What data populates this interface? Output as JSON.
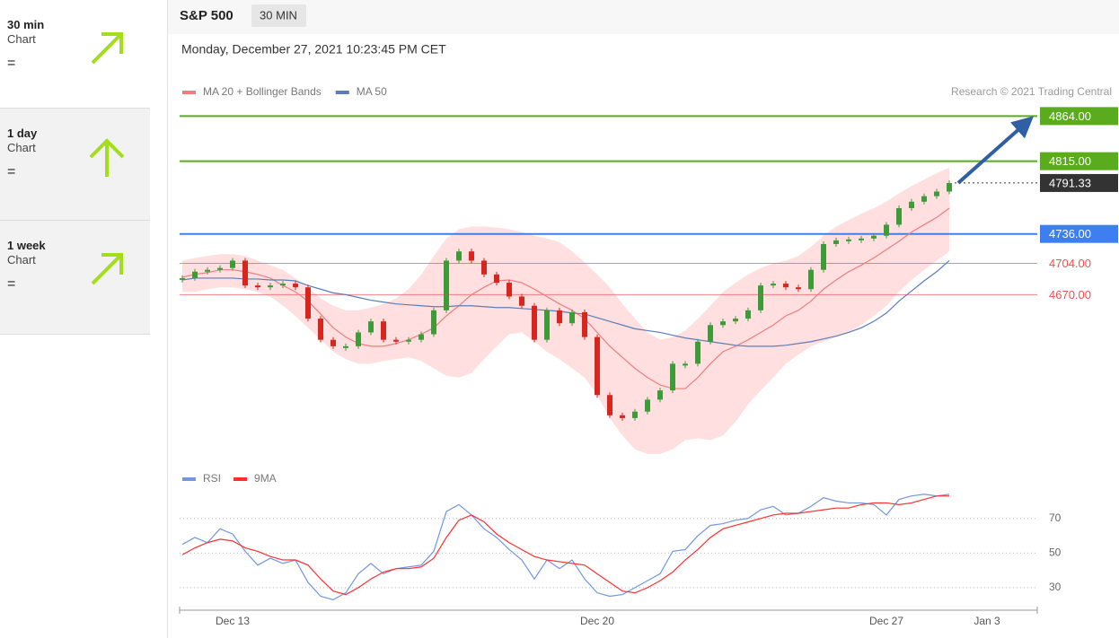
{
  "sidebar": [
    {
      "period": "30 min",
      "kind": "Chart",
      "status": "="
    },
    {
      "period": "1 day",
      "kind": "Chart",
      "status": "="
    },
    {
      "period": "1 week",
      "kind": "Chart",
      "status": "="
    }
  ],
  "chart_data": {
    "type": "candlestick",
    "title": "S&P 500",
    "subtitle": "30 MIN",
    "timestamp": "Monday, December 27, 2021 10:23:45 PM CET",
    "attribution": "Research © 2021 Trading Central",
    "categories": [
      null,
      null,
      null,
      null,
      "Dec 13",
      null,
      null,
      null,
      null,
      null,
      null,
      null,
      null,
      null,
      null,
      null,
      null,
      null,
      null,
      null,
      null,
      null,
      null,
      null,
      null,
      null,
      null,
      null,
      null,
      null,
      null,
      null,
      null,
      "Dec 20",
      null,
      null,
      null,
      null,
      null,
      null,
      null,
      null,
      null,
      null,
      null,
      null,
      null,
      null,
      null,
      null,
      null,
      null,
      null,
      null,
      null,
      null,
      "Dec 27",
      null,
      null,
      null,
      null,
      null,
      null,
      null,
      "Jan 3",
      null,
      null,
      null,
      null
    ],
    "close": [
      4688,
      4695,
      4697,
      4699,
      4707,
      4680,
      4678,
      4680,
      4682,
      4678,
      4644,
      4621,
      4614,
      4614,
      4629,
      4641,
      4621,
      4619,
      4621,
      4627,
      4653,
      4707,
      4717,
      4707,
      4692,
      4683,
      4668,
      4658,
      4621,
      4653,
      4639,
      4651,
      4624,
      4561,
      4539,
      4536,
      4543,
      4556,
      4566,
      4595,
      4595,
      4619,
      4637,
      4641,
      4644,
      4653,
      4680,
      4682,
      4678,
      4676,
      4697,
      4725,
      4729,
      4730,
      4731,
      4734,
      4746,
      4764,
      4771,
      4777,
      4782,
      4791.33,
      null,
      null,
      null,
      null,
      null,
      null,
      null
    ],
    "up_color": "#3f9a3a",
    "down_color": "#d8261e",
    "ylim": [
      4493,
      4878
    ],
    "series": [
      {
        "name": "MA 20 + Bollinger Bands",
        "color": "#f07d7d",
        "band_color": "#ffd9d9",
        "values": [
          4689,
          4692,
          4694,
          4697,
          4697,
          4695,
          4692,
          4688,
          4680,
          4673,
          4663,
          4649,
          4634,
          4624,
          4617,
          4614,
          4614,
          4617,
          4621,
          4627,
          4634,
          4647,
          4658,
          4670,
          4678,
          4685,
          4686,
          4683,
          4676,
          4668,
          4660,
          4653,
          4644,
          4629,
          4614,
          4602,
          4590,
          4580,
          4572,
          4568,
          4568,
          4580,
          4595,
          4608,
          4614,
          4621,
          4629,
          4637,
          4647,
          4653,
          4663,
          4676,
          4686,
          4695,
          4702,
          4710,
          4719,
          4728,
          4738,
          4746,
          4754,
          4764,
          null,
          null,
          null,
          null,
          null,
          null,
          null
        ],
        "upper": [
          4707,
          4710,
          4712,
          4714,
          4714,
          4712,
          4707,
          4702,
          4697,
          4688,
          4678,
          4666,
          4658,
          4653,
          4653,
          4656,
          4660,
          4666,
          4676,
          4692,
          4712,
          4731,
          4741,
          4744,
          4744,
          4743,
          4741,
          4738,
          4734,
          4731,
          4727,
          4717,
          4705,
          4692,
          4678,
          4660,
          4644,
          4629,
          4621,
          4624,
          4631,
          4644,
          4658,
          4673,
          4683,
          4692,
          4699,
          4704,
          4707,
          4712,
          4722,
          4734,
          4744,
          4751,
          4758,
          4764,
          4771,
          4780,
          4788,
          4795,
          4802,
          4808,
          null,
          null,
          null,
          null,
          null,
          null,
          null
        ],
        "lower": [
          4673,
          4673,
          4676,
          4678,
          4678,
          4676,
          4673,
          4668,
          4658,
          4647,
          4634,
          4621,
          4608,
          4600,
          4595,
          4595,
          4598,
          4600,
          4602,
          4598,
          4590,
          4582,
          4580,
          4585,
          4600,
          4614,
          4627,
          4629,
          4619,
          4608,
          4600,
          4590,
          4580,
          4561,
          4536,
          4517,
          4502,
          4497,
          4497,
          4502,
          4512,
          4514,
          4512,
          4517,
          4532,
          4551,
          4566,
          4580,
          4595,
          4605,
          4614,
          4619,
          4624,
          4629,
          4637,
          4647,
          4658,
          4673,
          4686,
          4697,
          4707,
          4717,
          null,
          null,
          null,
          null,
          null,
          null,
          null
        ]
      },
      {
        "name": "MA 50",
        "color": "#5a7db8",
        "values": [
          4686,
          4688,
          4688,
          4688,
          4688,
          4687,
          4687,
          4686,
          4686,
          4685,
          4680,
          4676,
          4672,
          4670,
          4667,
          4664,
          4662,
          4660,
          4659,
          4658,
          4657,
          4657,
          4658,
          4658,
          4657,
          4656,
          4656,
          4655,
          4654,
          4653,
          4652,
          4650,
          4649,
          4645,
          4641,
          4637,
          4633,
          4631,
          4629,
          4626,
          4623,
          4621,
          4619,
          4617,
          4615,
          4614,
          4614,
          4614,
          4615,
          4617,
          4619,
          4622,
          4625,
          4629,
          4634,
          4641,
          4650,
          4663,
          4674,
          4685,
          4695,
          4707,
          null,
          null,
          null,
          null,
          null,
          null,
          null
        ]
      }
    ],
    "levels": [
      {
        "value": 4864,
        "label": "4864.00",
        "color": "#5aab1e",
        "boxed": true
      },
      {
        "value": 4815,
        "label": "4815.00",
        "color": "#5aab1e",
        "boxed": true
      },
      {
        "value": 4791.33,
        "label": "4791.33",
        "color": "#333333",
        "boxed": true,
        "dotted": true
      },
      {
        "value": 4736,
        "label": "4736.00",
        "color": "#3d7ff0",
        "boxed": true
      },
      {
        "value": 4704,
        "label": "4704.00",
        "color": "#f05050",
        "boxed": false
      },
      {
        "value": 4670,
        "label": "4670.00",
        "color": "#f05050",
        "boxed": false
      }
    ],
    "rsi": {
      "ylim": [
        18,
        87
      ],
      "yticks": [
        30,
        50,
        70
      ],
      "series": [
        {
          "name": "RSI",
          "color": "#7396e0",
          "values": [
            55,
            59,
            56,
            64,
            61,
            51,
            43,
            47,
            44,
            46,
            33,
            25,
            23,
            27,
            38,
            44,
            38,
            41,
            42,
            43,
            51,
            74,
            78,
            72,
            64,
            59,
            52,
            46,
            35,
            46,
            41,
            46,
            35,
            27,
            25,
            26,
            30,
            34,
            38,
            51,
            52,
            60,
            66,
            67,
            69,
            70,
            75,
            77,
            72,
            73,
            77,
            82,
            80,
            79,
            79,
            78,
            72,
            81,
            83,
            84,
            83,
            84,
            null,
            null,
            null,
            null,
            null,
            null,
            null
          ]
        },
        {
          "name": "9MA",
          "color": "#ff3030",
          "values": [
            49,
            53,
            56,
            58,
            57,
            53,
            51,
            48,
            46,
            46,
            43,
            35,
            28,
            26,
            30,
            35,
            39,
            41,
            41,
            42,
            47,
            59,
            69,
            72,
            68,
            61,
            56,
            52,
            48,
            46,
            45,
            44,
            43,
            38,
            33,
            28,
            27,
            30,
            34,
            39,
            46,
            52,
            59,
            64,
            66,
            68,
            70,
            72,
            73,
            73,
            74,
            75,
            76,
            76,
            78,
            79,
            79,
            78,
            79,
            81,
            83,
            83,
            null,
            null,
            null,
            null,
            null,
            null,
            null
          ]
        }
      ]
    }
  }
}
